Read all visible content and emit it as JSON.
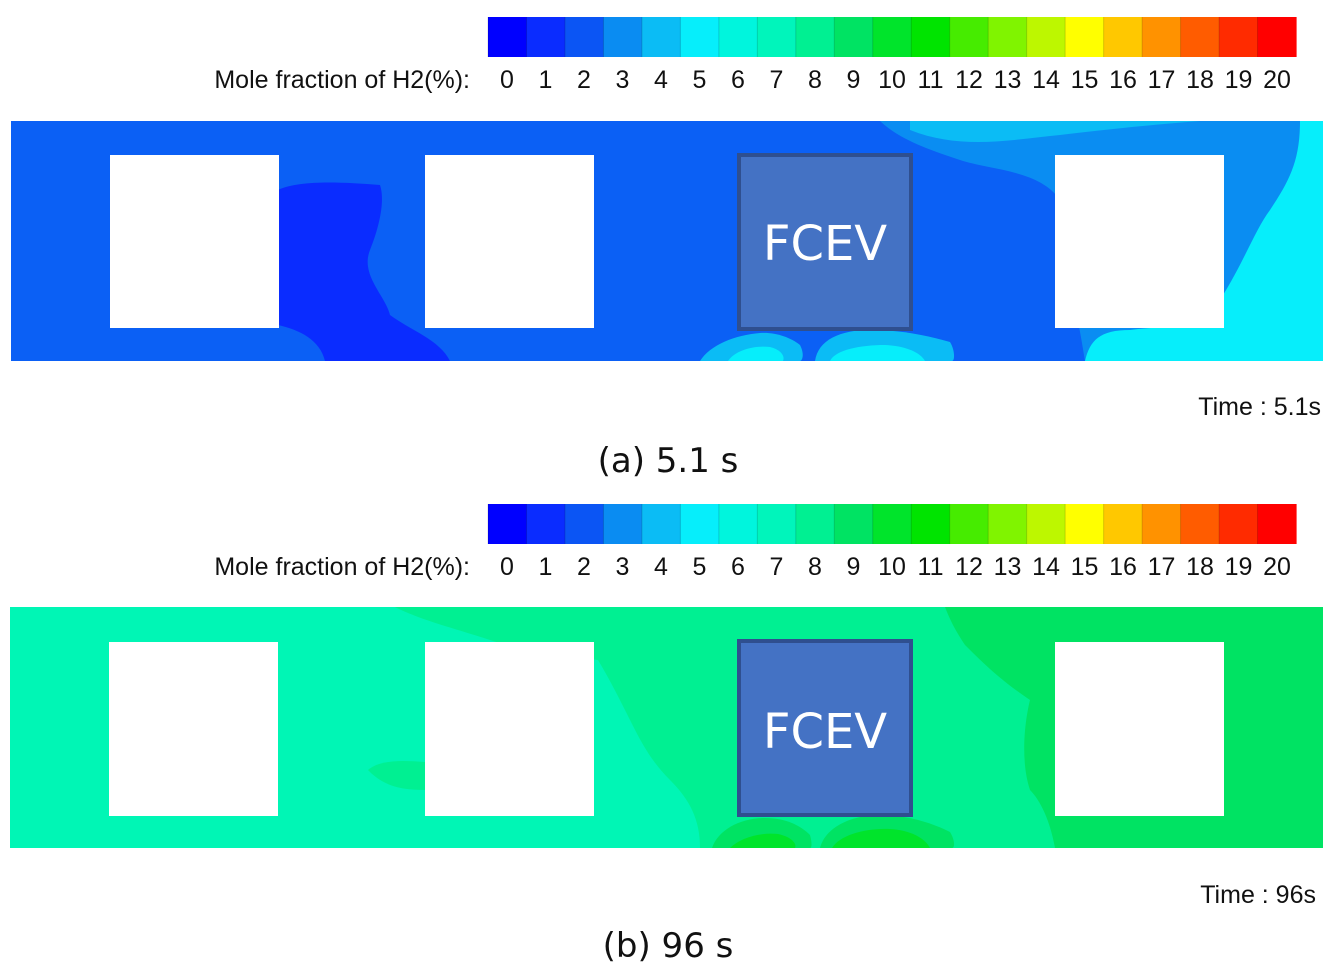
{
  "scale": {
    "title": "Mole fraction of H2(%):",
    "ticks": [
      "0",
      "1",
      "2",
      "3",
      "4",
      "5",
      "6",
      "7",
      "8",
      "9",
      "10",
      "11",
      "12",
      "13",
      "14",
      "15",
      "16",
      "17",
      "18",
      "19",
      "20"
    ],
    "colors": [
      "#0000ff",
      "#0a2cff",
      "#0b55f4",
      "#0a8cf2",
      "#0bbcf5",
      "#06eefb",
      "#00f5dd",
      "#00f5bb",
      "#00f092",
      "#00e363",
      "#00e42b",
      "#00e400",
      "#46ec00",
      "#80f400",
      "#bdf700",
      "#ffff00",
      "#ffc800",
      "#ff9200",
      "#ff5c00",
      "#ff2b00",
      "#ff0000"
    ]
  },
  "panels": [
    {
      "id": "a",
      "time_label": "Time : 5.1s",
      "caption": "(a) 5.1 s",
      "vehicle_label": "FCEV",
      "background_color": "#0b60f5"
    },
    {
      "id": "b",
      "time_label": "Time : 96s",
      "caption": "(b) 96 s",
      "vehicle_label": "FCEV",
      "background_color": "#00f6b5"
    }
  ],
  "colors": {
    "fcev_fill": "#4472c4",
    "fcev_border": "#2f4f8f"
  }
}
